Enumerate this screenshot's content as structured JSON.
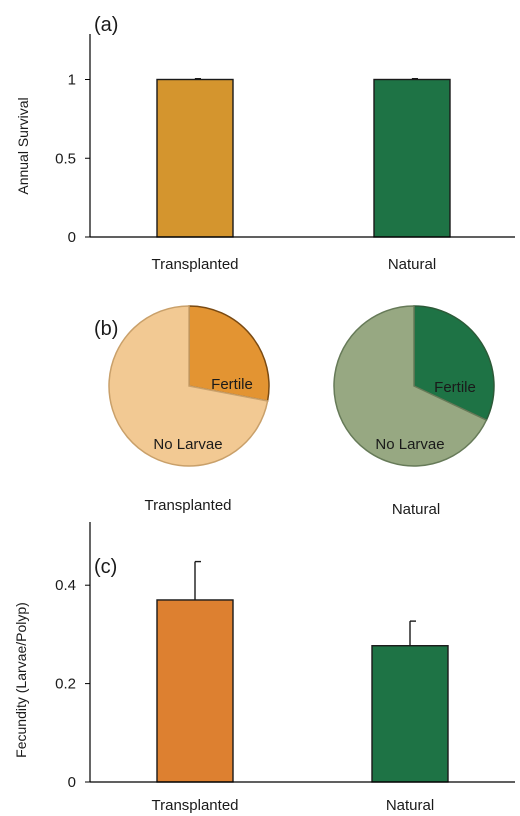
{
  "chart_data": [
    {
      "panel_label": "(a)",
      "type": "bar",
      "categories": [
        "Transplanted",
        "Natural"
      ],
      "values": [
        1.0,
        1.0
      ],
      "errors": [
        0.005,
        0.005
      ],
      "ylabel": "Annual Survival",
      "ylim": [
        0,
        1.2
      ],
      "yticks": [
        0,
        0.5,
        1
      ],
      "ytick_labels": [
        "0",
        "0.5",
        "1"
      ],
      "colors": [
        "#D4952E",
        "#1E7345"
      ]
    },
    {
      "panel_label": "(b)",
      "type": "pie",
      "pies": [
        {
          "name": "Transplanted",
          "slices": [
            {
              "label": "Fertile",
              "value": 0.28,
              "color": "#E39432"
            },
            {
              "label": "No Larvae",
              "value": 0.72,
              "color": "#F2C993"
            }
          ]
        },
        {
          "name": "Natural",
          "slices": [
            {
              "label": "Fertile",
              "value": 0.32,
              "color": "#1E7345"
            },
            {
              "label": "No Larvae",
              "value": 0.68,
              "color": "#97A882"
            }
          ]
        }
      ]
    },
    {
      "panel_label": "(c)",
      "type": "bar",
      "categories": [
        "Transplanted",
        "Natural"
      ],
      "values": [
        0.37,
        0.277
      ],
      "errors": [
        0.078,
        0.05
      ],
      "ylabel": "Fecundity (Larvae/Polyp)",
      "ylim": [
        0,
        0.5
      ],
      "yticks": [
        0,
        0.2,
        0.4
      ],
      "ytick_labels": [
        "0",
        "0.2",
        "0.4"
      ],
      "colors": [
        "#DD8030",
        "#1E7345"
      ]
    }
  ]
}
